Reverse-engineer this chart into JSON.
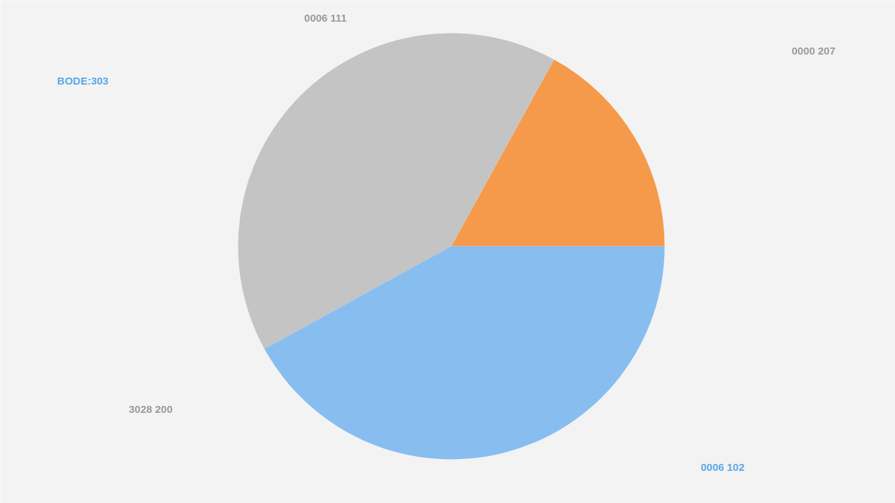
{
  "chart_data": {
    "type": "pie",
    "categories": [
      null,
      null,
      null
    ],
    "values": [
      17,
      41,
      42
    ],
    "colors": [
      "#f59a4a",
      "#c4c4c4",
      "#88bdf0"
    ],
    "annotations": [
      "0006 111",
      "0000 207",
      "BODE:303",
      "3028 200",
      "0006 102"
    ]
  }
}
